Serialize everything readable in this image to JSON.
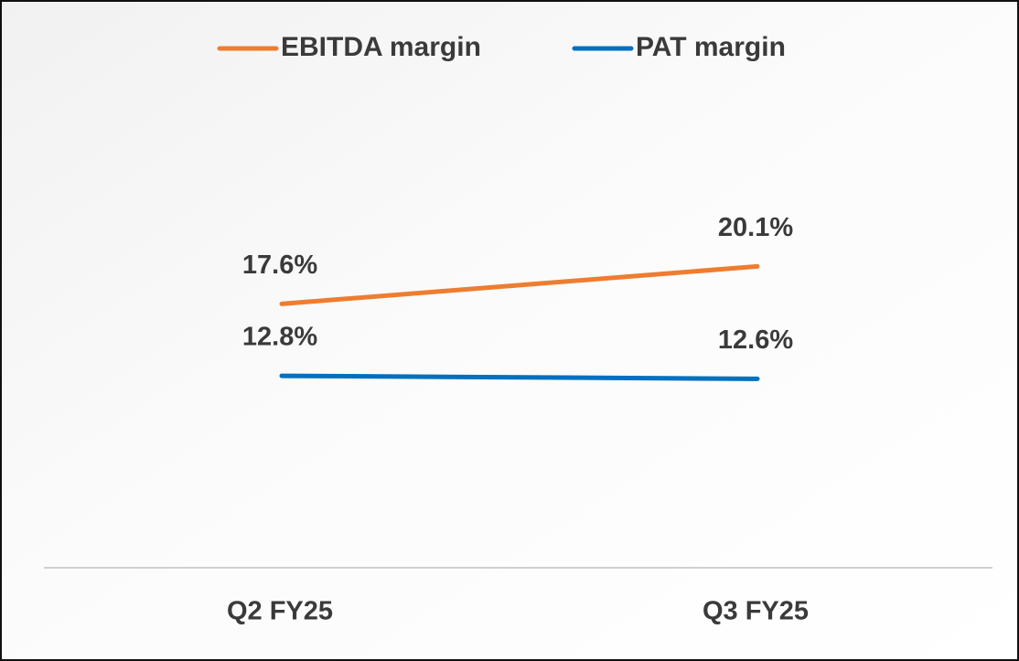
{
  "chart_data": {
    "type": "line",
    "categories": [
      "Q2 FY25",
      "Q3 FY25"
    ],
    "series": [
      {
        "name": "EBITDA margin",
        "color": "#ED7D31",
        "values": [
          17.6,
          20.1
        ],
        "value_labels": [
          "17.6%",
          "20.1%"
        ]
      },
      {
        "name": "PAT margin",
        "color": "#0070C0",
        "values": [
          12.8,
          12.6
        ],
        "value_labels": [
          "12.8%",
          "12.6%"
        ]
      }
    ],
    "ylim": [
      0,
      30
    ]
  }
}
